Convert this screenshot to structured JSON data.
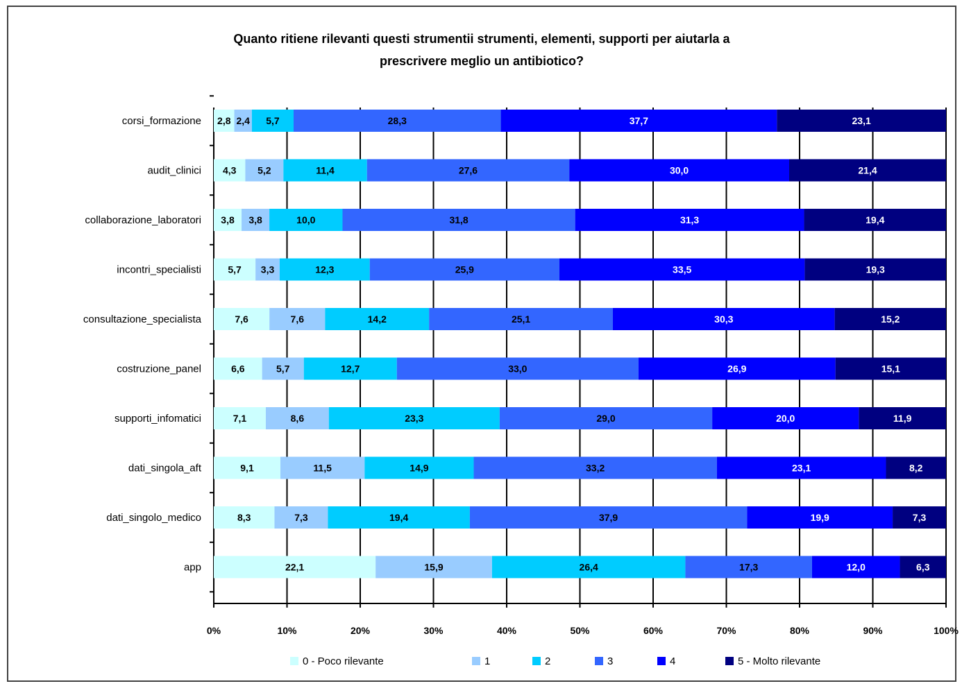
{
  "chart_data": {
    "type": "bar",
    "orientation": "horizontal",
    "stacked": "percent",
    "title_line1": "Quanto ritiene rilevanti questi strumentii strumenti, elementi, supporti per aiutarla a",
    "title_line2": "prescrivere meglio un antibiotico?",
    "categories": [
      "corsi_formazione",
      "audit_clinici",
      "collaborazione_laboratori",
      "incontri_specialisti",
      "consultazione_specialista",
      "costruzione_panel",
      "supporti_infomatici",
      "dati_singola_aft",
      "dati_singolo_medico",
      "app"
    ],
    "series": [
      {
        "name": "0 - Poco rilevante",
        "color": "#CCFFFF",
        "label_color": "#000000",
        "values": [
          2.8,
          4.3,
          3.8,
          5.7,
          7.6,
          6.6,
          7.1,
          9.1,
          8.3,
          22.1
        ],
        "labels": [
          "2,8",
          "4,3",
          "3,8",
          "5,7",
          "7,6",
          "6,6",
          "7,1",
          "9,1",
          "8,3",
          "22,1"
        ]
      },
      {
        "name": "1",
        "color": "#99CCFF",
        "label_color": "#000000",
        "values": [
          2.4,
          5.2,
          3.8,
          3.3,
          7.6,
          5.7,
          8.6,
          11.5,
          7.3,
          15.9
        ],
        "labels": [
          "2,4",
          "5,2",
          "3,8",
          "3,3",
          "7,6",
          "5,7",
          "8,6",
          "11,5",
          "7,3",
          "15,9"
        ]
      },
      {
        "name": "2",
        "color": "#00CCFF",
        "label_color": "#000000",
        "values": [
          5.7,
          11.4,
          10.0,
          12.3,
          14.2,
          12.7,
          23.3,
          14.9,
          19.4,
          26.4
        ],
        "labels": [
          "5,7",
          "11,4",
          "10,0",
          "12,3",
          "14,2",
          "12,7",
          "23,3",
          "14,9",
          "19,4",
          "26,4"
        ]
      },
      {
        "name": "3",
        "color": "#3366FF",
        "label_color": "#000000",
        "values": [
          28.3,
          27.6,
          31.8,
          25.9,
          25.1,
          33.0,
          29.0,
          33.2,
          37.9,
          17.3
        ],
        "labels": [
          "28,3",
          "27,6",
          "31,8",
          "25,9",
          "25,1",
          "33,0",
          "29,0",
          "33,2",
          "37,9",
          "17,3"
        ]
      },
      {
        "name": "4",
        "color": "#0000FF",
        "label_color": "#FFFFFF",
        "values": [
          37.7,
          30.0,
          31.3,
          33.5,
          30.3,
          26.9,
          20.0,
          23.1,
          19.9,
          12.0
        ],
        "labels": [
          "37,7",
          "30,0",
          "31,3",
          "33,5",
          "30,3",
          "26,9",
          "20,0",
          "23,1",
          "19,9",
          "12,0"
        ]
      },
      {
        "name": "5 - Molto rilevante",
        "color": "#000080",
        "label_color": "#FFFFFF",
        "values": [
          23.1,
          21.4,
          19.4,
          19.3,
          15.2,
          15.1,
          11.9,
          8.2,
          7.3,
          6.3
        ],
        "labels": [
          "23,1",
          "21,4",
          "19,4",
          "19,3",
          "15,2",
          "15,1",
          "11,9",
          "8,2",
          "7,3",
          "6,3"
        ]
      }
    ],
    "xticks": [
      "0%",
      "10%",
      "20%",
      "30%",
      "40%",
      "50%",
      "60%",
      "70%",
      "80%",
      "90%",
      "100%"
    ],
    "xlim": [
      0,
      100
    ],
    "grid": "vertical",
    "legend_position": "bottom"
  }
}
